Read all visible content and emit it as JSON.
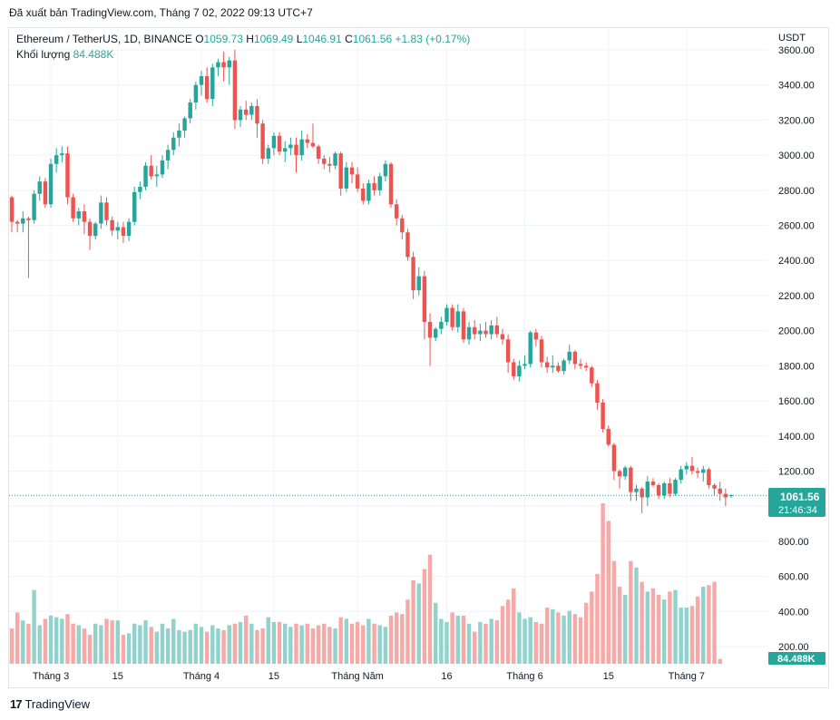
{
  "header": {
    "published": "Đã xuất bản TradingView.com, Tháng 7 02, 2022 09:13 UTC+7"
  },
  "legend": {
    "symbol": "Ethereum / TetherUS, 1D, BINANCE",
    "o_label": "O",
    "o": "1059.73",
    "h_label": "H",
    "h": "1069.49",
    "l_label": "L",
    "l": "1046.91",
    "c_label": "C",
    "c": "1061.56",
    "change": "+1.83 (+0.17%)",
    "volume_label": "Khối lượng",
    "volume_value": "84.488K"
  },
  "axis": {
    "currency": "USDT"
  },
  "price_tag": {
    "price": "1061.56",
    "countdown": "21:46:34"
  },
  "volume_tag": "84.488K",
  "footer": {
    "logo_text": "TradingView",
    "logo_mark": "17"
  },
  "colors": {
    "up": "#26a69a",
    "down": "#ef5350",
    "up_vol": "#92d2cc",
    "down_vol": "#f7a9a7",
    "grid": "#f0f3fa"
  },
  "chart_data": {
    "type": "candlestick",
    "y_ticks": [
      "200.00",
      "400.00",
      "600.00",
      "800.00",
      "1000.00",
      "1200.00",
      "1400.00",
      "1600.00",
      "1800.00",
      "2000.00",
      "2200.00",
      "2400.00",
      "2600.00",
      "2800.00",
      "3000.00",
      "3200.00",
      "3400.00",
      "3600.00"
    ],
    "x_ticks": [
      "Tháng 3",
      "15",
      "Tháng 4",
      "15",
      "Tháng Năm",
      "16",
      "Tháng 6",
      "15",
      "Tháng 7"
    ],
    "ohlc": [
      [
        2760,
        2770,
        2560,
        2620
      ],
      [
        2620,
        2630,
        2560,
        2610
      ],
      [
        2610,
        2680,
        2560,
        2640
      ],
      [
        2640,
        2650,
        2300,
        2630
      ],
      [
        2630,
        2800,
        2610,
        2780
      ],
      [
        2780,
        2880,
        2740,
        2850
      ],
      [
        2850,
        2870,
        2700,
        2720
      ],
      [
        2720,
        2980,
        2700,
        2950
      ],
      [
        2950,
        3040,
        2900,
        3000
      ],
      [
        3000,
        3050,
        2960,
        3010
      ],
      [
        3010,
        3050,
        2720,
        2760
      ],
      [
        2760,
        2780,
        2620,
        2640
      ],
      [
        2640,
        2700,
        2600,
        2680
      ],
      [
        2680,
        2720,
        2550,
        2620
      ],
      [
        2620,
        2640,
        2460,
        2540
      ],
      [
        2540,
        2620,
        2520,
        2610
      ],
      [
        2610,
        2770,
        2580,
        2730
      ],
      [
        2730,
        2760,
        2600,
        2630
      ],
      [
        2630,
        2650,
        2540,
        2570
      ],
      [
        2570,
        2620,
        2520,
        2590
      ],
      [
        2590,
        2620,
        2500,
        2540
      ],
      [
        2540,
        2640,
        2510,
        2620
      ],
      [
        2620,
        2820,
        2600,
        2790
      ],
      [
        2790,
        2850,
        2750,
        2820
      ],
      [
        2820,
        2960,
        2800,
        2940
      ],
      [
        2940,
        3000,
        2860,
        2880
      ],
      [
        2880,
        2940,
        2820,
        2890
      ],
      [
        2890,
        3000,
        2870,
        2970
      ],
      [
        2970,
        3060,
        2920,
        3030
      ],
      [
        3030,
        3130,
        3000,
        3100
      ],
      [
        3100,
        3180,
        3050,
        3140
      ],
      [
        3140,
        3220,
        3100,
        3210
      ],
      [
        3210,
        3320,
        3180,
        3300
      ],
      [
        3300,
        3420,
        3260,
        3400
      ],
      [
        3400,
        3480,
        3340,
        3450
      ],
      [
        3450,
        3500,
        3300,
        3320
      ],
      [
        3320,
        3520,
        3280,
        3500
      ],
      [
        3500,
        3550,
        3450,
        3530
      ],
      [
        3530,
        3590,
        3420,
        3500
      ],
      [
        3500,
        3560,
        3400,
        3540
      ],
      [
        3540,
        3600,
        3150,
        3200
      ],
      [
        3200,
        3280,
        3160,
        3260
      ],
      [
        3260,
        3310,
        3200,
        3230
      ],
      [
        3230,
        3300,
        3200,
        3280
      ],
      [
        3280,
        3320,
        3100,
        3180
      ],
      [
        3180,
        3200,
        2950,
        2980
      ],
      [
        2980,
        3060,
        2950,
        3040
      ],
      [
        3040,
        3130,
        3000,
        3110
      ],
      [
        3110,
        3130,
        3000,
        3020
      ],
      [
        3020,
        3080,
        2960,
        3040
      ],
      [
        3040,
        3100,
        3000,
        3060
      ],
      [
        3060,
        3100,
        2900,
        3000
      ],
      [
        3000,
        3140,
        2970,
        3090
      ],
      [
        3090,
        3120,
        3040,
        3070
      ],
      [
        3070,
        3180,
        3040,
        3050
      ],
      [
        3050,
        3060,
        2950,
        2980
      ],
      [
        2980,
        3000,
        2920,
        2950
      ],
      [
        2950,
        2990,
        2900,
        2940
      ],
      [
        2940,
        3020,
        2920,
        3010
      ],
      [
        3010,
        3020,
        2770,
        2810
      ],
      [
        2810,
        2960,
        2790,
        2930
      ],
      [
        2930,
        2960,
        2840,
        2890
      ],
      [
        2890,
        2930,
        2790,
        2810
      ],
      [
        2810,
        2840,
        2720,
        2740
      ],
      [
        2740,
        2860,
        2720,
        2840
      ],
      [
        2840,
        2880,
        2770,
        2800
      ],
      [
        2800,
        2900,
        2770,
        2880
      ],
      [
        2880,
        2970,
        2850,
        2950
      ],
      [
        2950,
        2960,
        2700,
        2720
      ],
      [
        2720,
        2750,
        2600,
        2640
      ],
      [
        2640,
        2660,
        2520,
        2560
      ],
      [
        2560,
        2580,
        2400,
        2420
      ],
      [
        2420,
        2450,
        2180,
        2230
      ],
      [
        2230,
        2360,
        2200,
        2310
      ],
      [
        2310,
        2340,
        1950,
        2050
      ],
      [
        2050,
        2100,
        1800,
        1960
      ],
      [
        1960,
        2020,
        1940,
        2010
      ],
      [
        2010,
        2080,
        1980,
        2050
      ],
      [
        2050,
        2150,
        2030,
        2130
      ],
      [
        2130,
        2150,
        2000,
        2020
      ],
      [
        2020,
        2150,
        1990,
        2110
      ],
      [
        2110,
        2130,
        1930,
        1950
      ],
      [
        1950,
        2050,
        1920,
        2020
      ],
      [
        2020,
        2060,
        1950,
        1980
      ],
      [
        1980,
        2040,
        1940,
        2000
      ],
      [
        2000,
        2050,
        1960,
        1980
      ],
      [
        1980,
        2060,
        1950,
        2030
      ],
      [
        2030,
        2080,
        1960,
        1980
      ],
      [
        1980,
        2010,
        1920,
        1950
      ],
      [
        1950,
        1980,
        1760,
        1820
      ],
      [
        1820,
        1840,
        1720,
        1740
      ],
      [
        1740,
        1830,
        1710,
        1800
      ],
      [
        1800,
        1860,
        1780,
        1810
      ],
      [
        1810,
        2000,
        1790,
        1990
      ],
      [
        1990,
        2010,
        1910,
        1950
      ],
      [
        1950,
        1970,
        1790,
        1820
      ],
      [
        1820,
        1850,
        1760,
        1790
      ],
      [
        1790,
        1860,
        1760,
        1800
      ],
      [
        1800,
        1820,
        1760,
        1770
      ],
      [
        1770,
        1840,
        1750,
        1830
      ],
      [
        1830,
        1920,
        1810,
        1880
      ],
      [
        1880,
        1890,
        1780,
        1810
      ],
      [
        1810,
        1840,
        1780,
        1800
      ],
      [
        1800,
        1820,
        1770,
        1790
      ],
      [
        1790,
        1800,
        1680,
        1700
      ],
      [
        1700,
        1720,
        1550,
        1590
      ],
      [
        1590,
        1610,
        1420,
        1440
      ],
      [
        1440,
        1460,
        1340,
        1350
      ],
      [
        1350,
        1360,
        1150,
        1200
      ],
      [
        1200,
        1210,
        1100,
        1170
      ],
      [
        1170,
        1230,
        1150,
        1220
      ],
      [
        1220,
        1230,
        1030,
        1080
      ],
      [
        1080,
        1120,
        1030,
        1100
      ],
      [
        1100,
        1110,
        960,
        1050
      ],
      [
        1050,
        1170,
        1000,
        1140
      ],
      [
        1140,
        1160,
        1110,
        1120
      ],
      [
        1120,
        1130,
        1040,
        1060
      ],
      [
        1060,
        1140,
        1040,
        1130
      ],
      [
        1130,
        1160,
        1050,
        1070
      ],
      [
        1070,
        1160,
        1060,
        1150
      ],
      [
        1150,
        1230,
        1130,
        1210
      ],
      [
        1210,
        1250,
        1180,
        1230
      ],
      [
        1230,
        1280,
        1180,
        1200
      ],
      [
        1200,
        1220,
        1160,
        1190
      ],
      [
        1190,
        1230,
        1140,
        1210
      ],
      [
        1210,
        1220,
        1100,
        1120
      ],
      [
        1120,
        1130,
        1060,
        1100
      ],
      [
        1100,
        1140,
        1030,
        1070
      ],
      [
        1070,
        1100,
        1000,
        1050
      ],
      [
        1060,
        1069,
        1047,
        1062
      ]
    ],
    "volume": [
      220,
      320,
      270,
      250,
      460,
      240,
      280,
      300,
      290,
      280,
      310,
      250,
      240,
      220,
      180,
      250,
      240,
      280,
      270,
      270,
      180,
      190,
      250,
      240,
      270,
      230,
      200,
      250,
      220,
      280,
      210,
      200,
      210,
      250,
      230,
      200,
      240,
      220,
      210,
      240,
      250,
      260,
      300,
      250,
      210,
      220,
      290,
      260,
      260,
      250,
      230,
      250,
      240,
      250,
      220,
      240,
      250,
      230,
      220,
      290,
      280,
      250,
      260,
      240,
      280,
      250,
      240,
      230,
      300,
      320,
      310,
      400,
      520,
      500,
      590,
      680,
      380,
      280,
      260,
      320,
      300,
      300,
      250,
      200,
      260,
      250,
      280,
      270,
      360,
      400,
      470,
      320,
      280,
      290,
      260,
      250,
      350,
      340,
      320,
      300,
      330,
      310,
      290,
      380,
      450,
      560,
      1000,
      890,
      640,
      480,
      430,
      640,
      600,
      510,
      450,
      470,
      430,
      400,
      450,
      460,
      350,
      350,
      360,
      420,
      480,
      490,
      510,
      30
    ]
  }
}
